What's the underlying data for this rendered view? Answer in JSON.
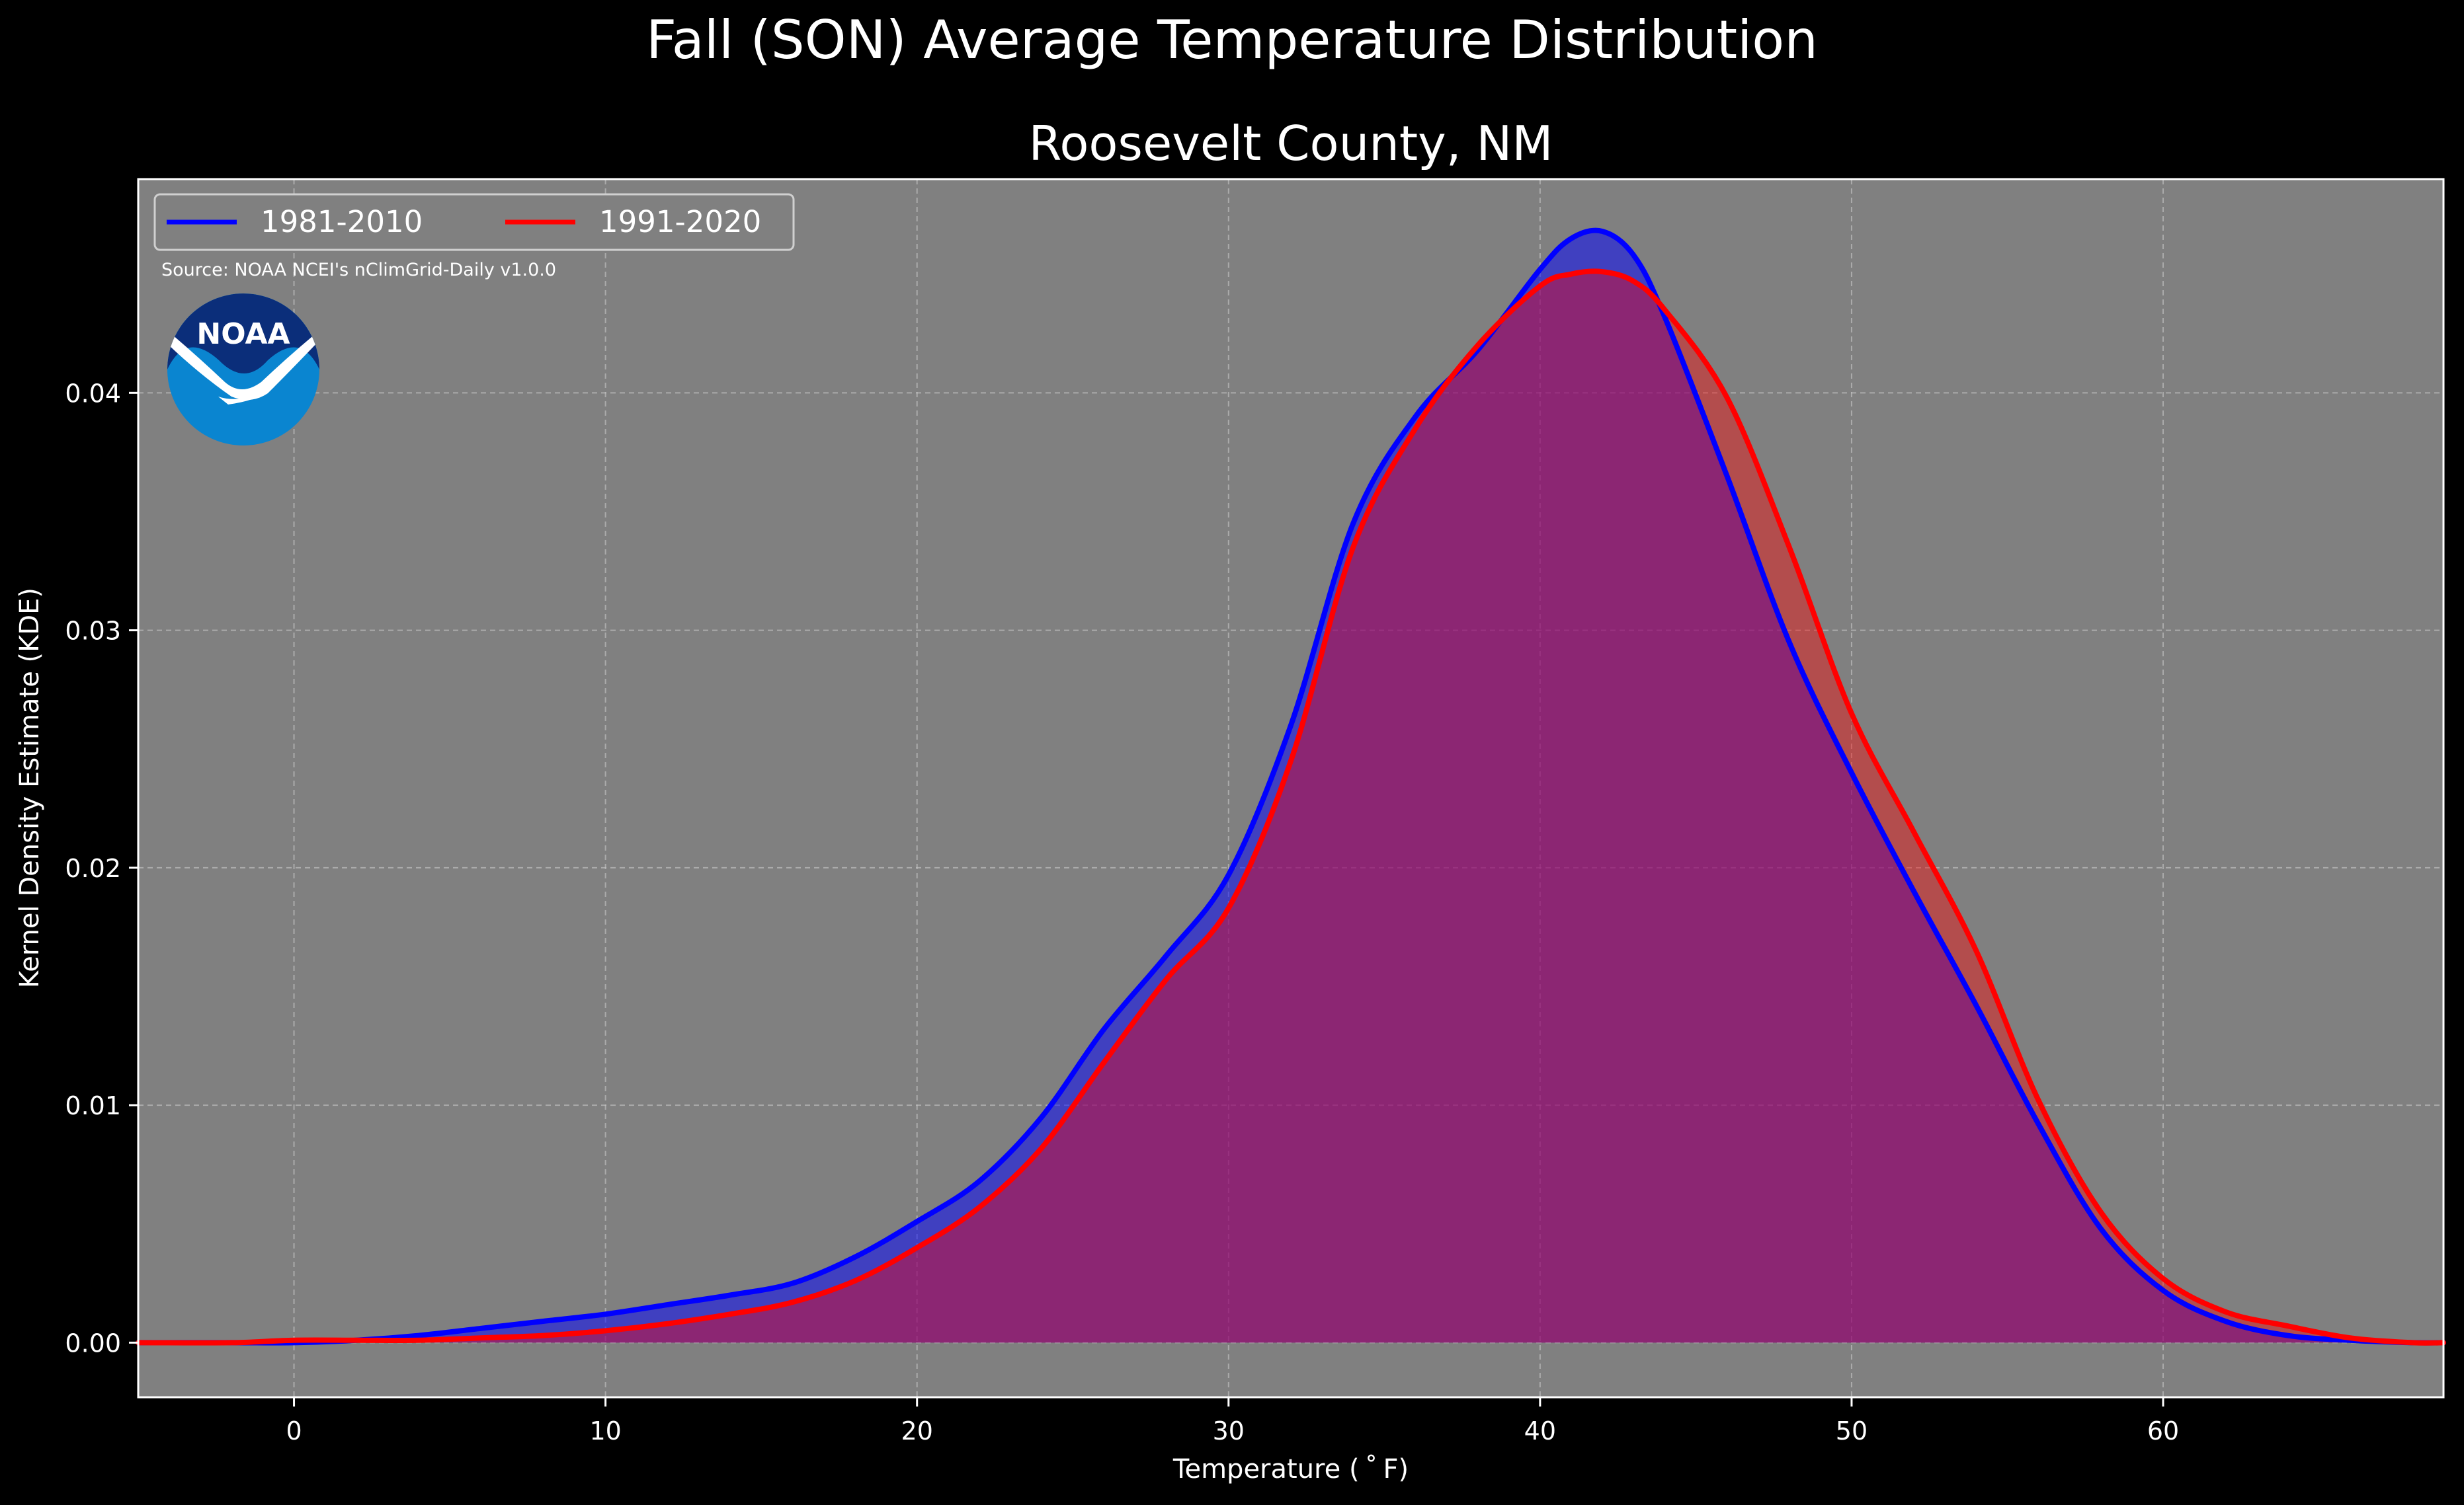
{
  "chart_data": {
    "type": "area",
    "title": "Fall (SON) Average Temperature Distribution",
    "subtitle": "Roosevelt County, NM",
    "xlabel": "Temperature ($^\\circ$F)",
    "xlabel_display": "Temperature ( ˚ F)",
    "ylabel": "Kernel Density Estimate (KDE)",
    "xlim": [
      -5,
      69
    ],
    "ylim": [
      -0.0023,
      0.049
    ],
    "xticks": [
      0,
      10,
      20,
      30,
      40,
      50,
      60
    ],
    "xtick_labels": [
      "0",
      "10",
      "20",
      "30",
      "40",
      "50",
      "60"
    ],
    "yticks": [
      0.0,
      0.01,
      0.02,
      0.03,
      0.04
    ],
    "ytick_labels": [
      "0.00",
      "0.01",
      "0.02",
      "0.03",
      "0.04"
    ],
    "grid": true,
    "legend_position": "top-left",
    "source_note": "Source: NOAA NCEI's nClimGrid-Daily v1.0.0",
    "logo_text": "NOAA",
    "x": [
      -5,
      -2,
      0,
      2,
      4,
      6,
      8,
      10,
      12,
      14,
      16,
      18,
      20,
      22,
      24,
      26,
      28,
      30,
      32,
      34,
      36,
      38,
      40,
      41,
      42,
      43,
      44,
      46,
      48,
      50,
      52,
      54,
      56,
      58,
      60,
      62,
      64,
      66,
      68,
      69
    ],
    "series": [
      {
        "name": "1981-2010",
        "color": "#0000ff",
        "fill": "rgba(0,0,255,0.5)",
        "values": [
          0.0,
          0.0,
          0.0,
          0.0001,
          0.0003,
          0.0006,
          0.0009,
          0.0012,
          0.0016,
          0.002,
          0.0025,
          0.0036,
          0.0051,
          0.0068,
          0.0095,
          0.0132,
          0.0163,
          0.0197,
          0.026,
          0.0345,
          0.039,
          0.0418,
          0.0452,
          0.0465,
          0.0468,
          0.0458,
          0.0432,
          0.0365,
          0.0295,
          0.024,
          0.019,
          0.0142,
          0.0092,
          0.0048,
          0.0022,
          0.0009,
          0.0003,
          0.0001,
          0.0,
          0.0
        ]
      },
      {
        "name": "1991-2020",
        "color": "#ff0000",
        "fill": "rgba(255,0,0,0.4)",
        "values": [
          0.0,
          0.0,
          0.0001,
          0.0001,
          0.0001,
          0.0002,
          0.0003,
          0.0005,
          0.0008,
          0.0012,
          0.0017,
          0.0026,
          0.004,
          0.0057,
          0.0082,
          0.0118,
          0.0153,
          0.0183,
          0.0245,
          0.0335,
          0.0385,
          0.042,
          0.0445,
          0.045,
          0.0451,
          0.0447,
          0.0435,
          0.0398,
          0.0335,
          0.0265,
          0.0215,
          0.0165,
          0.0102,
          0.0055,
          0.0027,
          0.0013,
          0.0007,
          0.0002,
          0.0,
          0.0
        ]
      }
    ]
  }
}
